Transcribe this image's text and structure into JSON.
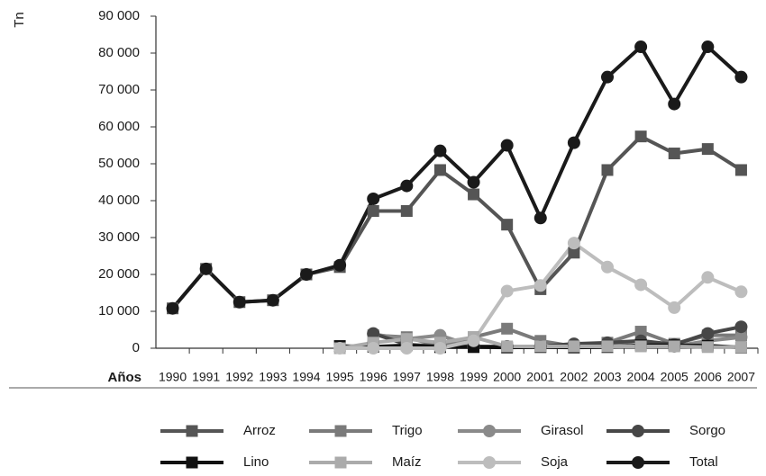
{
  "chart_data": {
    "type": "line",
    "ylabel": "Tn",
    "xlabel": "Años",
    "categories": [
      "1990",
      "1991",
      "1992",
      "1993",
      "1994",
      "1995",
      "1996",
      "1997",
      "1998",
      "1999",
      "2000",
      "2001",
      "2002",
      "2003",
      "2004",
      "2005",
      "2006",
      "2007"
    ],
    "ylim": [
      0,
      90000
    ],
    "yticks": [
      0,
      {
        "value": 10000,
        "label": "10 000"
      },
      {
        "value": 20000,
        "label": "20 000"
      },
      {
        "value": 30000,
        "label": "30 000"
      },
      {
        "value": 40000,
        "label": "40 000"
      },
      {
        "value": 50000,
        "label": "50 000"
      },
      {
        "value": 60000,
        "label": "60 000"
      },
      {
        "value": 70000,
        "label": "70 000"
      },
      {
        "value": 80000,
        "label": "80 000"
      },
      {
        "value": 90000,
        "label": "90 000"
      }
    ],
    "grid": false,
    "series": [
      {
        "name": "Arroz",
        "color": "#555555",
        "marker": "square",
        "values": [
          10800,
          21500,
          12500,
          13000,
          20000,
          22000,
          37200,
          37200,
          48300,
          41700,
          33500,
          16000,
          25900,
          48300,
          57400,
          52800,
          54000,
          48300
        ]
      },
      {
        "name": "Trigo",
        "color": "#7a7a7a",
        "marker": "square",
        "values": [
          null,
          null,
          null,
          null,
          null,
          null,
          3500,
          3000,
          500,
          3000,
          5300,
          2000,
          500,
          1500,
          4500,
          1200,
          3500,
          3500
        ]
      },
      {
        "name": "Girasol",
        "color": "#8a8a8a",
        "marker": "circle",
        "values": [
          null,
          null,
          null,
          null,
          null,
          null,
          3800,
          2500,
          3500,
          500,
          500,
          500,
          1000,
          1000,
          2000,
          500,
          2000,
          3000
        ]
      },
      {
        "name": "Sorgo",
        "color": "#474747",
        "marker": "circle",
        "values": [
          null,
          null,
          null,
          null,
          null,
          null,
          4000,
          1000,
          500,
          500,
          500,
          500,
          1200,
          1500,
          2000,
          1000,
          4000,
          5800
        ]
      },
      {
        "name": "Lino",
        "color": "#111111",
        "marker": "square",
        "values": [
          null,
          null,
          null,
          null,
          null,
          600,
          400,
          800,
          300,
          300,
          200,
          300,
          200,
          300,
          800,
          800,
          700,
          200
        ]
      },
      {
        "name": "Maíz",
        "color": "#ababab",
        "marker": "square",
        "values": [
          null,
          null,
          null,
          null,
          null,
          0,
          1500,
          2500,
          1500,
          3000,
          500,
          500,
          500,
          500,
          500,
          500,
          300,
          300
        ]
      },
      {
        "name": "Soja",
        "color": "#bdbdbd",
        "marker": "circle",
        "values": [
          null,
          null,
          null,
          null,
          null,
          0,
          0,
          0,
          0,
          2000,
          15500,
          17000,
          28500,
          22000,
          17200,
          11000,
          19200,
          15300
        ]
      },
      {
        "name": "Total",
        "color": "#1a1a1a",
        "marker": "circle",
        "values": [
          10800,
          21500,
          12500,
          13000,
          20000,
          22500,
          40500,
          44000,
          53500,
          45000,
          55000,
          35300,
          55700,
          73500,
          81700,
          66200,
          81700,
          73500
        ]
      }
    ]
  }
}
